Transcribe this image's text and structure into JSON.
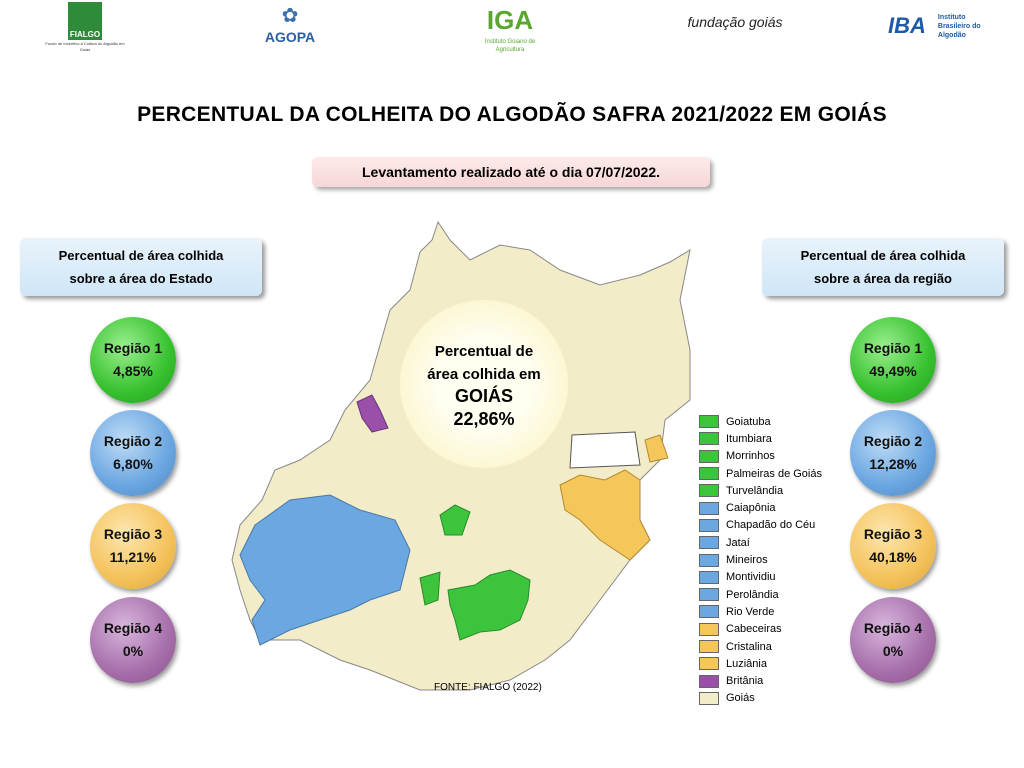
{
  "logos": {
    "fialgo": "FIALGO",
    "fialgo_sub": "Fundo de Incentivo à Cultura do Algodão em Goiás",
    "agopa": "AGOPA",
    "iga": "IGA",
    "iga_sub": "Instituto Goiano de Agricultura",
    "fundacao": "fundação goiás",
    "iba": "IBA",
    "iba_sub": "Instituto Brasileiro do Algodão"
  },
  "title": "PERCENTUAL DA COLHEITA DO ALGODÃO SAFRA 2021/2022 EM GOIÁS",
  "survey": "Levantamento realizado até o dia 07/07/2022.",
  "left": {
    "header_line1": "Percentual de área colhida",
    "header_line2": "sobre a área do Estado",
    "regions": [
      {
        "name": "Região 1",
        "value": "4,85%"
      },
      {
        "name": "Região 2",
        "value": "6,80%"
      },
      {
        "name": "Região 3",
        "value": "11,21%"
      },
      {
        "name": "Região 4",
        "value": "0%"
      }
    ]
  },
  "right": {
    "header_line1": "Percentual de área colhida",
    "header_line2": "sobre a área da região",
    "regions": [
      {
        "name": "Região 1",
        "value": "49,49%"
      },
      {
        "name": "Região 2",
        "value": "12,28%"
      },
      {
        "name": "Região 3",
        "value": "40,18%"
      },
      {
        "name": "Região 4",
        "value": "0%"
      }
    ]
  },
  "center": {
    "line1": "Percentual de",
    "line2": "área colhida em",
    "line3": "GOIÁS",
    "value": "22,86%"
  },
  "colors": {
    "region1": "#3cc43c",
    "region2": "#6ba7e0",
    "region3": "#f5c65a",
    "region4": "#9a4fa8",
    "goias": "#f3ecc8"
  },
  "legend": [
    {
      "label": "Goiatuba",
      "color": "#3cc43c"
    },
    {
      "label": "Itumbiara",
      "color": "#3cc43c"
    },
    {
      "label": "Morrinhos",
      "color": "#3cc43c"
    },
    {
      "label": "Palmeiras de Goiás",
      "color": "#3cc43c"
    },
    {
      "label": "Turvelândia",
      "color": "#3cc43c"
    },
    {
      "label": "Caiapônia",
      "color": "#6ba7e0"
    },
    {
      "label": "Chapadão do Céu",
      "color": "#6ba7e0"
    },
    {
      "label": "Jataí",
      "color": "#6ba7e0"
    },
    {
      "label": "Mineiros",
      "color": "#6ba7e0"
    },
    {
      "label": "Montividiu",
      "color": "#6ba7e0"
    },
    {
      "label": "Perolândia",
      "color": "#6ba7e0"
    },
    {
      "label": "Rio Verde",
      "color": "#6ba7e0"
    },
    {
      "label": "Cabeceiras",
      "color": "#f5c65a"
    },
    {
      "label": "Cristalina",
      "color": "#f5c65a"
    },
    {
      "label": "Luziânia",
      "color": "#f5c65a"
    },
    {
      "label": "Britânia",
      "color": "#9a4fa8"
    },
    {
      "label": "Goiás",
      "color": "#f3ecc8"
    }
  ],
  "source": "FONTE: FIALGO (2022)"
}
